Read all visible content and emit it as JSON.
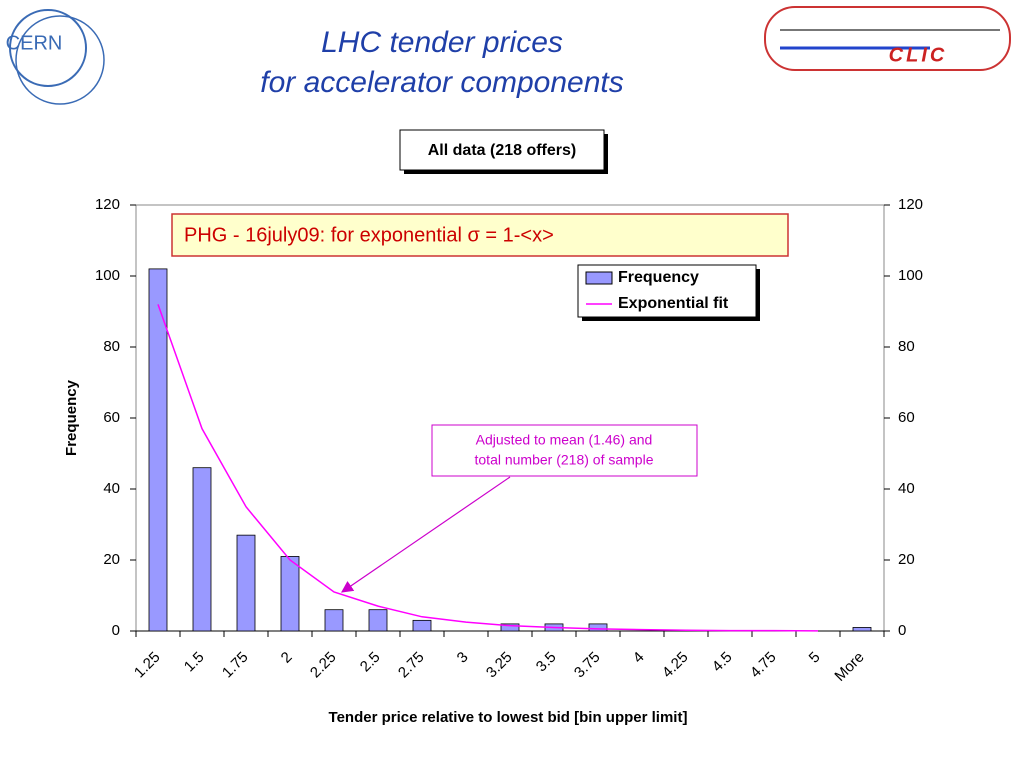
{
  "slide": {
    "title_lines": [
      "LHC tender prices",
      "for accelerator components"
    ],
    "logo_left": "CERN",
    "logo_right": "CLIC"
  },
  "chart_data": {
    "type": "bar",
    "title": "All data (218 offers)",
    "x_label": "Tender price relative to lowest bid [bin upper limit]",
    "y_label": "Frequency",
    "annotations": [
      "PHG - 16july09: for exponential  σ = 1-<x>",
      "Adjusted to mean (1.46) and",
      "total number (218) of sample"
    ],
    "categories": [
      "1.25",
      "1.5",
      "1.75",
      "2",
      "2.25",
      "2.5",
      "2.75",
      "3",
      "3.25",
      "3.5",
      "3.75",
      "4",
      "4.25",
      "4.5",
      "4.75",
      "5",
      "More"
    ],
    "series": [
      {
        "name": "Frequency",
        "type": "bar",
        "color": "#9999ff",
        "values": [
          102,
          46,
          27,
          21,
          6,
          6,
          3,
          0,
          2,
          2,
          2,
          0,
          0,
          0,
          0,
          0,
          1
        ]
      },
      {
        "name": "Exponential fit",
        "type": "line",
        "color": "#ff00ff",
        "values": [
          92,
          57,
          35,
          20,
          11,
          7,
          4,
          2.5,
          1.5,
          1,
          0.6,
          0.4,
          0.2,
          0.1,
          0.1,
          0.05,
          null
        ]
      }
    ],
    "ylim": [
      0,
      120
    ],
    "yticks": [
      0,
      20,
      40,
      60,
      80,
      100,
      120
    ],
    "y2lim": [
      0,
      120
    ],
    "y2ticks": [
      0,
      20,
      40,
      60,
      80,
      100,
      120
    ],
    "legend": "upper right"
  }
}
